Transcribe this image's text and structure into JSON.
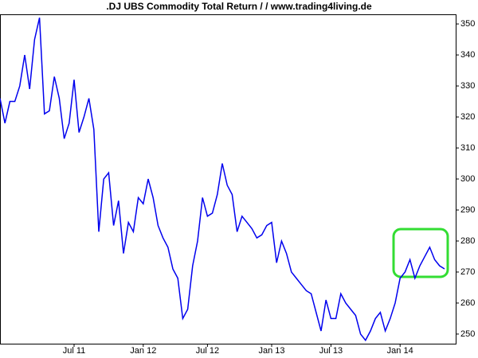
{
  "chart_data": {
    "type": "line",
    "title": ".DJ UBS Commodity Total Return /  / www.trading4living.de",
    "categories": [
      null,
      null,
      null,
      null,
      null,
      null,
      null,
      null,
      null,
      null,
      null,
      null,
      null,
      null,
      null,
      "Jul 11",
      null,
      null,
      null,
      null,
      null,
      null,
      null,
      null,
      null,
      null,
      null,
      null,
      null,
      "Jan 12",
      null,
      null,
      null,
      null,
      null,
      null,
      null,
      null,
      null,
      null,
      null,
      null,
      "Jul 12",
      null,
      null,
      null,
      null,
      null,
      null,
      null,
      null,
      null,
      null,
      null,
      null,
      "Jan 13",
      null,
      null,
      null,
      null,
      null,
      null,
      null,
      null,
      null,
      null,
      null,
      "Jul 13",
      null,
      null,
      null,
      null,
      null,
      null,
      null,
      null,
      null,
      null,
      null,
      null,
      null,
      "Jan 14",
      null,
      null,
      null,
      null,
      null,
      null,
      null,
      null,
      null
    ],
    "series": [
      {
        "color": "#0000ee",
        "values": [
          326,
          318,
          325,
          325,
          330,
          340,
          329,
          345,
          352,
          321,
          322,
          333,
          326,
          313,
          318,
          332,
          315,
          320,
          326,
          316,
          283,
          300,
          302,
          285,
          293,
          276,
          286,
          283,
          294,
          292,
          300,
          294,
          285,
          281,
          278,
          271,
          268,
          255,
          258,
          272,
          280,
          294,
          288,
          289,
          295,
          305,
          298,
          295,
          283,
          288,
          286,
          284,
          281,
          282,
          285,
          286,
          273,
          280,
          276,
          270,
          268,
          266,
          264,
          263,
          257,
          251,
          261,
          255,
          255,
          263,
          260,
          258,
          256,
          250,
          248,
          251,
          255,
          257,
          251,
          255,
          260,
          268,
          270,
          274,
          268,
          272,
          275,
          278,
          274,
          272,
          271
        ]
      }
    ],
    "ylim": [
      246.9,
      353.1
    ],
    "yticks": [
      250,
      260,
      270,
      280,
      290,
      300,
      310,
      320,
      330,
      340,
      350
    ]
  }
}
